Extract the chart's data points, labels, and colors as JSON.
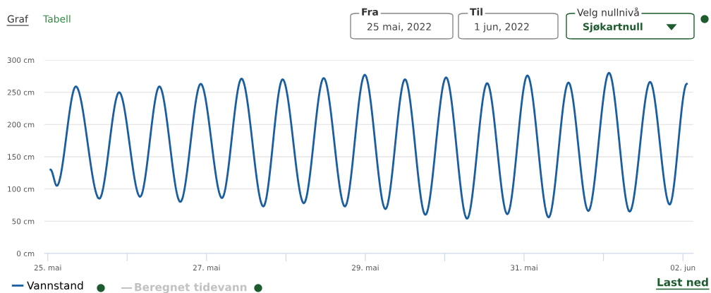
{
  "chart_data": {
    "type": "line",
    "x": [
      "2022-05-25T00:51",
      "2022-05-25T02:45",
      "2022-05-25T08:30",
      "2022-05-25T15:35",
      "2022-05-25T21:35",
      "2022-05-26T03:55",
      "2022-05-26T09:45",
      "2022-05-26T16:05",
      "2022-05-26T22:15",
      "2022-05-27T04:40",
      "2022-05-27T10:35",
      "2022-05-27T17:10",
      "2022-05-27T23:00",
      "2022-05-28T05:25",
      "2022-05-28T11:25",
      "2022-05-28T17:50",
      "2022-05-28T23:50",
      "2022-05-29T06:05",
      "2022-05-29T12:00",
      "2022-05-29T18:10",
      "2022-05-30T00:25",
      "2022-05-30T06:45",
      "2022-05-30T12:50",
      "2022-05-30T18:55",
      "2022-05-31T01:00",
      "2022-05-31T07:25",
      "2022-05-31T13:25",
      "2022-05-31T19:25",
      "2022-06-01T01:40",
      "2022-06-01T07:55",
      "2022-06-01T14:05",
      "2022-06-01T20:00",
      "2022-06-02T01:10"
    ],
    "series": [
      {
        "name": "Vannstand",
        "color": "#1b5e9f",
        "values": [
          130,
          105,
          259,
          85,
          250,
          88,
          259,
          80,
          263,
          86,
          271,
          73,
          270,
          78,
          272,
          73,
          277,
          69,
          270,
          60,
          273,
          54,
          264,
          61,
          276,
          56,
          265,
          66,
          280,
          65,
          266,
          76,
          263
        ]
      }
    ],
    "xlim": [
      "2022-05-24T23:00",
      "2022-06-02T03:10"
    ],
    "xticks": [
      {
        "value": "2022-05-25",
        "label": "25. mai"
      },
      {
        "value": "2022-05-26",
        "label": null
      },
      {
        "value": "2022-05-27",
        "label": "27. mai"
      },
      {
        "value": "2022-05-28",
        "label": null
      },
      {
        "value": "2022-05-29",
        "label": "29. mai"
      },
      {
        "value": "2022-05-30",
        "label": null
      },
      {
        "value": "2022-05-31",
        "label": "31. mai"
      },
      {
        "value": "2022-06-01",
        "label": null
      },
      {
        "value": "2022-06-02",
        "label": "02. jun"
      }
    ],
    "ylim": [
      0,
      300
    ],
    "yticks": [
      {
        "value": 0,
        "label": "0 cm"
      },
      {
        "value": 50,
        "label": "50 cm"
      },
      {
        "value": 100,
        "label": "100 cm"
      },
      {
        "value": 150,
        "label": "150 cm"
      },
      {
        "value": 200,
        "label": "200 cm"
      },
      {
        "value": 250,
        "label": "250 cm"
      },
      {
        "value": 300,
        "label": "300 cm"
      }
    ],
    "grid": "y",
    "legend": "bottom left",
    "marker": "none",
    "line_style": "solid",
    "annotations": [
      "Graf",
      "Tabell",
      "Fra",
      "25 mai, 2022",
      "Til",
      "1 jun, 2022",
      "Velg nullnivå",
      "Sjøkartnull",
      "Beregnet tidevann",
      "Last ned"
    ]
  }
}
